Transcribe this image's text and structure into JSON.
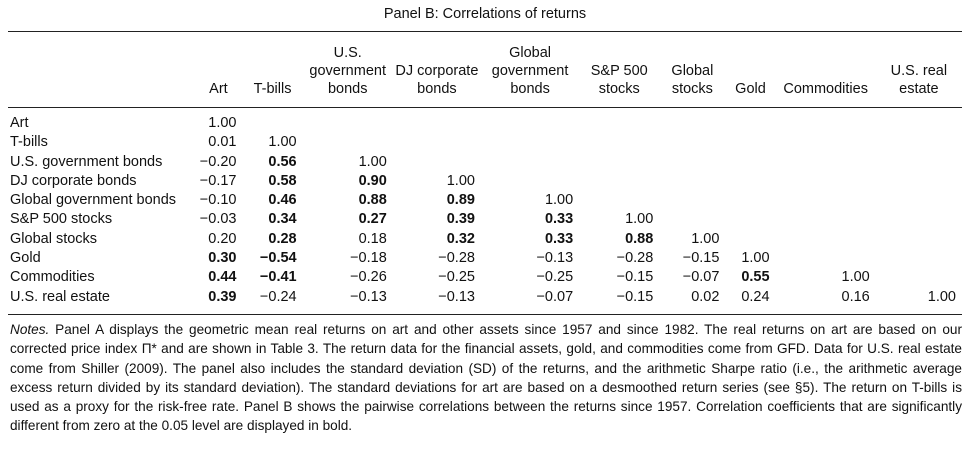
{
  "panel_title": "Panel B: Correlations of returns",
  "columns": [
    "Art",
    "T-bills",
    "U.S. government bonds",
    "DJ corporate bonds",
    "Global government bonds",
    "S&P 500 stocks",
    "Global stocks",
    "Gold",
    "Commodities",
    "U.S. real estate"
  ],
  "rows": [
    {
      "label": "Art",
      "values": [
        {
          "v": "1.00",
          "b": false
        }
      ]
    },
    {
      "label": "T-bills",
      "values": [
        {
          "v": "0.01",
          "b": false
        },
        {
          "v": "1.00",
          "b": false
        }
      ]
    },
    {
      "label": "U.S. government bonds",
      "values": [
        {
          "v": "−0.20",
          "b": false
        },
        {
          "v": "0.56",
          "b": true
        },
        {
          "v": "1.00",
          "b": false
        }
      ]
    },
    {
      "label": "DJ corporate bonds",
      "values": [
        {
          "v": "−0.17",
          "b": false
        },
        {
          "v": "0.58",
          "b": true
        },
        {
          "v": "0.90",
          "b": true
        },
        {
          "v": "1.00",
          "b": false
        }
      ]
    },
    {
      "label": "Global government bonds",
      "values": [
        {
          "v": "−0.10",
          "b": false
        },
        {
          "v": "0.46",
          "b": true
        },
        {
          "v": "0.88",
          "b": true
        },
        {
          "v": "0.89",
          "b": true
        },
        {
          "v": "1.00",
          "b": false
        }
      ]
    },
    {
      "label": "S&P 500 stocks",
      "values": [
        {
          "v": "−0.03",
          "b": false
        },
        {
          "v": "0.34",
          "b": true
        },
        {
          "v": "0.27",
          "b": true
        },
        {
          "v": "0.39",
          "b": true
        },
        {
          "v": "0.33",
          "b": true
        },
        {
          "v": "1.00",
          "b": false
        }
      ]
    },
    {
      "label": "Global stocks",
      "values": [
        {
          "v": "0.20",
          "b": false
        },
        {
          "v": "0.28",
          "b": true
        },
        {
          "v": "0.18",
          "b": false
        },
        {
          "v": "0.32",
          "b": true
        },
        {
          "v": "0.33",
          "b": true
        },
        {
          "v": "0.88",
          "b": true
        },
        {
          "v": "1.00",
          "b": false
        }
      ]
    },
    {
      "label": "Gold",
      "values": [
        {
          "v": "0.30",
          "b": true
        },
        {
          "v": "−0.54",
          "b": true
        },
        {
          "v": "−0.18",
          "b": false
        },
        {
          "v": "−0.28",
          "b": false
        },
        {
          "v": "−0.13",
          "b": false
        },
        {
          "v": "−0.28",
          "b": false
        },
        {
          "v": "−0.15",
          "b": false
        },
        {
          "v": "1.00",
          "b": false
        }
      ]
    },
    {
      "label": "Commodities",
      "values": [
        {
          "v": "0.44",
          "b": true
        },
        {
          "v": "−0.41",
          "b": true
        },
        {
          "v": "−0.26",
          "b": false
        },
        {
          "v": "−0.25",
          "b": false
        },
        {
          "v": "−0.25",
          "b": false
        },
        {
          "v": "−0.15",
          "b": false
        },
        {
          "v": "−0.07",
          "b": false
        },
        {
          "v": "0.55",
          "b": true
        },
        {
          "v": "1.00",
          "b": false
        }
      ]
    },
    {
      "label": "U.S. real estate",
      "values": [
        {
          "v": "0.39",
          "b": true
        },
        {
          "v": "−0.24",
          "b": false
        },
        {
          "v": "−0.13",
          "b": false
        },
        {
          "v": "−0.13",
          "b": false
        },
        {
          "v": "−0.07",
          "b": false
        },
        {
          "v": "−0.15",
          "b": false
        },
        {
          "v": "0.02",
          "b": false
        },
        {
          "v": "0.24",
          "b": false
        },
        {
          "v": "0.16",
          "b": false
        },
        {
          "v": "1.00",
          "b": false
        }
      ]
    }
  ],
  "notes": {
    "lead": "Notes.",
    "text": " Panel A displays the geometric mean real returns on art and other assets since 1957 and since 1982. The real returns on art are based on our corrected price index Π* and are shown in Table 3. The return data for the financial assets, gold, and commodities come from GFD. Data for U.S. real estate come from Shiller (2009). The panel also includes the standard deviation (SD) of the returns, and the arithmetic Sharpe ratio (i.e., the arithmetic average excess return divided by its standard deviation). The standard deviations for art are based on a desmoothed return series (see §5). The return on T-bills is used as a proxy for the risk-free rate. Panel B shows the pairwise correlations between the returns since 1957. Correlation coefficients that are significantly different from zero at the 0.05 level are displayed in bold."
  }
}
